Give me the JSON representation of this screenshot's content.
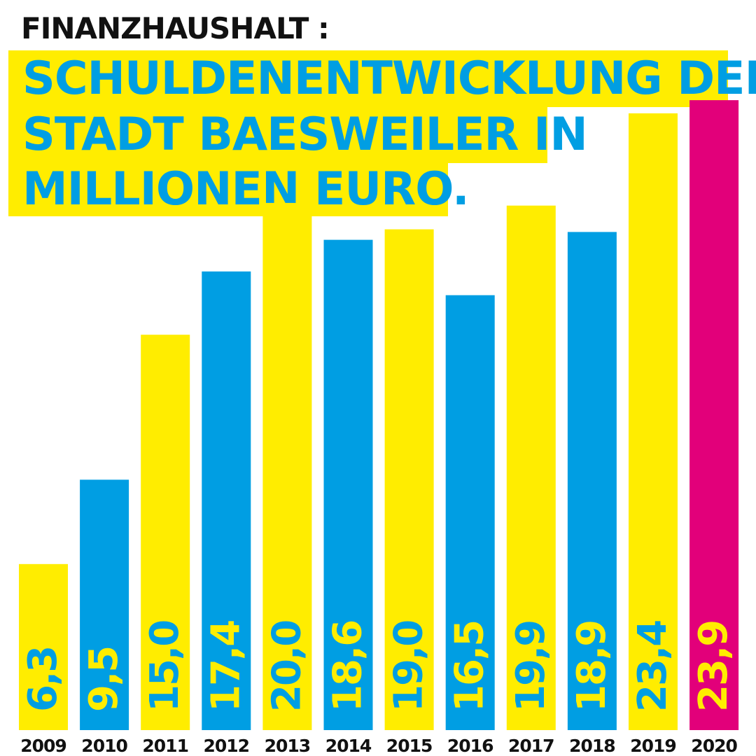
{
  "header": {
    "kicker": "FINANZHAUSHALT :",
    "title_lines": [
      "SCHULDENENTWICKLUNG DER",
      "STADT BAESWEILER IN",
      "MILLIONEN EURO."
    ]
  },
  "colors": {
    "yellow": "#ffed00",
    "blue": "#009ee3",
    "magenta": "#e2007a",
    "text_dark": "#111111"
  },
  "chart_data": {
    "type": "bar",
    "title": "SCHULDENENTWICKLUNG DER STADT BAESWEILER IN MILLIONEN EURO.",
    "categories": [
      "2009",
      "2010",
      "2011",
      "2012",
      "2013",
      "2014",
      "2015",
      "2016",
      "2017",
      "2018",
      "2019",
      "2020"
    ],
    "values": [
      6.3,
      9.5,
      15.0,
      17.4,
      20.0,
      18.6,
      19.0,
      16.5,
      19.9,
      18.9,
      23.4,
      23.9
    ],
    "value_labels": [
      "6,3",
      "9,5",
      "15,0",
      "17,4",
      "20,0",
      "18,6",
      "19,0",
      "16,5",
      "19,9",
      "18,9",
      "23,4",
      "23,9"
    ],
    "bar_colors": [
      "yellow",
      "blue",
      "yellow",
      "blue",
      "yellow",
      "blue",
      "yellow",
      "blue",
      "yellow",
      "blue",
      "yellow",
      "magenta"
    ],
    "label_colors": [
      "blue",
      "yellow",
      "blue",
      "yellow",
      "blue",
      "yellow",
      "blue",
      "yellow",
      "blue",
      "yellow",
      "blue",
      "yellow"
    ],
    "xlabel": "",
    "ylabel": "",
    "ylim": [
      0,
      27.7
    ],
    "grid": false,
    "legend": "none"
  }
}
